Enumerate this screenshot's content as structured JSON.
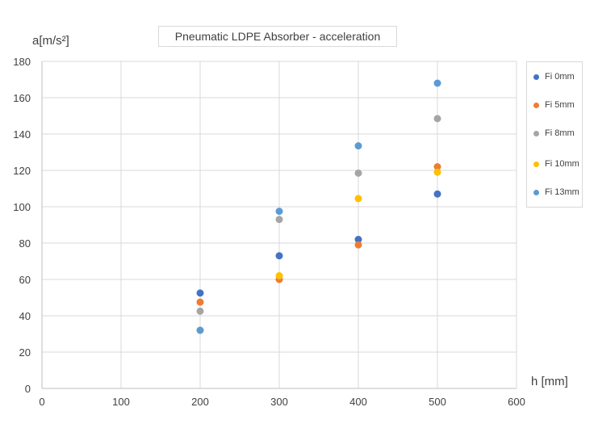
{
  "chart_data": {
    "type": "scatter",
    "title": "Pneumatic LDPE Absorber - acceleration",
    "xlabel": "h [mm]",
    "ylabel": "a[m/s²]",
    "xlim": [
      0,
      600
    ],
    "ylim": [
      0,
      180
    ],
    "xticks": [
      0,
      100,
      200,
      300,
      400,
      500,
      600
    ],
    "yticks": [
      0,
      20,
      40,
      60,
      80,
      100,
      120,
      140,
      160,
      180
    ],
    "grid": true,
    "legend_position": "right",
    "x": [
      200,
      300,
      400,
      500
    ],
    "series": [
      {
        "name": "Fi 0mm",
        "color": "#4472C4",
        "values": [
          52.5,
          73,
          82,
          107
        ]
      },
      {
        "name": "Fi 5mm",
        "color": "#ED7D31",
        "values": [
          47.5,
          60,
          79,
          122
        ]
      },
      {
        "name": "Fi 8mm",
        "color": "#A5A5A5",
        "values": [
          42.5,
          93,
          118.5,
          148.5
        ]
      },
      {
        "name": "Fi 10mm",
        "color": "#FFC000",
        "values": [
          32,
          62,
          104.5,
          119
        ]
      },
      {
        "name": "Fi 13mm",
        "color": "#5B9BD5",
        "values": [
          32,
          97.5,
          133.5,
          168
        ]
      }
    ]
  }
}
